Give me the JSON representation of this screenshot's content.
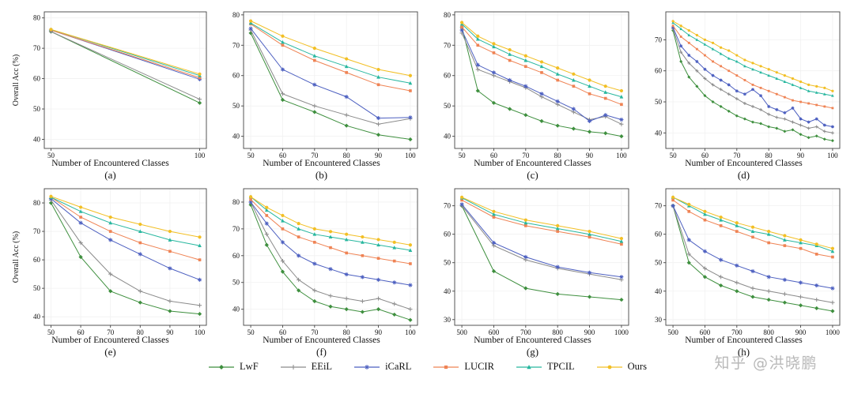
{
  "figure": {
    "xlabel": "Number of Encountered Classes",
    "ylabel": "Overall Acc (%)"
  },
  "watermark": {
    "text": "知乎 @洪晓鹏"
  },
  "legend": {
    "position": "bottom-center",
    "series": [
      {
        "name": "LwF",
        "label": "LwF",
        "color": "#3e8f3e",
        "marker": "diamond"
      },
      {
        "name": "EEiL",
        "label": "EEiL",
        "color": "#8a8a8a",
        "marker": "plus"
      },
      {
        "name": "iCaRL",
        "label": "iCaRL",
        "color": "#4c5fc0",
        "marker": "asterisk"
      },
      {
        "name": "LUCIR",
        "label": "LUCIR",
        "color": "#ef8354",
        "marker": "square"
      },
      {
        "name": "TPCIL",
        "label": "TPCIL",
        "color": "#28b79f",
        "marker": "triangle"
      },
      {
        "name": "Ours",
        "label": "Ours",
        "color": "#f2bf24",
        "marker": "circle"
      }
    ]
  },
  "chart_data": [
    {
      "type": "line",
      "label": "(a)",
      "xlabel": "Number of Encountered Classes",
      "ylabel": "Overall Acc (%)",
      "x": [
        50,
        100
      ],
      "xticks": [
        50,
        100
      ],
      "yticks": [
        40,
        50,
        60,
        70,
        80
      ],
      "ylim": [
        37,
        82
      ],
      "series": [
        {
          "name": "LwF",
          "values": [
            75.5,
            52
          ]
        },
        {
          "name": "EEiL",
          "values": [
            75.5,
            53.2
          ]
        },
        {
          "name": "iCaRL",
          "values": [
            76,
            59.8
          ]
        },
        {
          "name": "LUCIR",
          "values": [
            76,
            60.3
          ]
        },
        {
          "name": "TPCIL",
          "values": [
            76.2,
            61
          ]
        },
        {
          "name": "Ours",
          "values": [
            76.2,
            61.5
          ]
        }
      ]
    },
    {
      "type": "line",
      "label": "(b)",
      "xlabel": "Number of Encountered Classes",
      "ylabel": "",
      "x": [
        50,
        60,
        70,
        80,
        90,
        100
      ],
      "xticks": [
        50,
        60,
        70,
        80,
        90,
        100
      ],
      "yticks": [
        40,
        50,
        60,
        70,
        80
      ],
      "ylim": [
        36,
        81
      ],
      "series": [
        {
          "name": "LwF",
          "values": [
            74,
            52,
            48,
            43.5,
            40.5,
            39
          ]
        },
        {
          "name": "EEiL",
          "values": [
            75,
            54,
            50,
            47,
            44,
            45.8
          ]
        },
        {
          "name": "iCaRL",
          "values": [
            75.5,
            62,
            57,
            53,
            46,
            46.2
          ]
        },
        {
          "name": "LUCIR",
          "values": [
            77,
            70,
            65,
            61,
            57,
            55
          ]
        },
        {
          "name": "TPCIL",
          "values": [
            77.3,
            71,
            66.5,
            63,
            59.5,
            57.5
          ]
        },
        {
          "name": "Ours",
          "values": [
            78,
            73,
            69,
            65.5,
            62,
            60
          ]
        }
      ]
    },
    {
      "type": "line",
      "label": "(c)",
      "xlabel": "Number of Encountered Classes",
      "ylabel": "",
      "x": [
        50,
        55,
        60,
        65,
        70,
        75,
        80,
        85,
        90,
        95,
        100
      ],
      "xticks": [
        50,
        60,
        70,
        80,
        90,
        100
      ],
      "yticks": [
        40,
        50,
        60,
        70,
        80
      ],
      "ylim": [
        36,
        81
      ],
      "series": [
        {
          "name": "LwF",
          "values": [
            76,
            55,
            51,
            49,
            47,
            45,
            43.5,
            42.5,
            41.5,
            41,
            40
          ]
        },
        {
          "name": "EEiL",
          "values": [
            74,
            62,
            60,
            58,
            56,
            53,
            50.5,
            48,
            45.5,
            46.5,
            44
          ]
        },
        {
          "name": "iCaRL",
          "values": [
            75,
            63.5,
            61,
            58.5,
            56.5,
            54,
            51.5,
            49,
            45,
            47,
            45.5
          ]
        },
        {
          "name": "LUCIR",
          "values": [
            76,
            70,
            67.5,
            65,
            63,
            61,
            58.5,
            56.5,
            54,
            52.5,
            50.5
          ]
        },
        {
          "name": "TPCIL",
          "values": [
            77,
            72,
            69.5,
            67,
            65,
            63,
            60.5,
            58.5,
            56.5,
            54.5,
            53
          ]
        },
        {
          "name": "Ours",
          "values": [
            77.5,
            73,
            70.5,
            68.5,
            66.5,
            64.5,
            62.5,
            60.5,
            58.5,
            56.5,
            55
          ]
        }
      ]
    },
    {
      "type": "line",
      "label": "(d)",
      "xlabel": "Number of Encountered Classes",
      "ylabel": "",
      "x": [
        50,
        52.5,
        55,
        57.5,
        60,
        62.5,
        65,
        67.5,
        70,
        72.5,
        75,
        77.5,
        80,
        82.5,
        85,
        87.5,
        90,
        92.5,
        95,
        97.5,
        100
      ],
      "xticks": [
        50,
        60,
        70,
        80,
        90,
        100
      ],
      "yticks": [
        40,
        50,
        60,
        70
      ],
      "ylim": [
        35,
        79
      ],
      "series": [
        {
          "name": "LwF",
          "values": [
            73,
            63,
            58,
            55,
            52,
            50,
            48.5,
            47,
            45.5,
            44.5,
            43.5,
            43,
            42,
            41.5,
            40.5,
            41,
            39.5,
            38.5,
            39,
            38,
            37.5
          ]
        },
        {
          "name": "EEiL",
          "values": [
            73.5,
            66,
            62.5,
            60,
            57.5,
            55.5,
            54,
            52.5,
            51,
            49.5,
            48.5,
            47.5,
            46,
            45,
            44.5,
            43.5,
            42.5,
            41.5,
            42,
            40.5,
            40
          ]
        },
        {
          "name": "iCaRL",
          "values": [
            74,
            68,
            65,
            63,
            60.5,
            58.5,
            57,
            55.5,
            53.5,
            52.5,
            54,
            52,
            48.5,
            47.5,
            46.5,
            48,
            44.5,
            43.5,
            44.5,
            42.5,
            42
          ]
        },
        {
          "name": "LUCIR",
          "values": [
            74.5,
            71,
            69,
            67,
            65,
            63,
            61.5,
            60,
            58.5,
            57,
            55.5,
            54.5,
            53.5,
            52.5,
            51.5,
            50.5,
            50,
            49.5,
            49,
            48.5,
            48
          ]
        },
        {
          "name": "TPCIL",
          "values": [
            75.5,
            73.5,
            71.5,
            70,
            68.5,
            67,
            65.5,
            64,
            63,
            61.5,
            60.5,
            59.5,
            58.5,
            57.5,
            56.5,
            55.5,
            54.5,
            53.5,
            53,
            52.5,
            52
          ]
        },
        {
          "name": "Ours",
          "values": [
            76,
            74.5,
            73,
            71.5,
            70,
            69,
            67.5,
            66.5,
            65,
            63.5,
            62.5,
            61.5,
            60.5,
            59.5,
            58.5,
            57.5,
            56.5,
            55.5,
            55,
            54.5,
            53.5
          ]
        }
      ]
    },
    {
      "type": "line",
      "label": "(e)",
      "xlabel": "Number of Encountered Classes",
      "ylabel": "Overall Acc (%)",
      "x": [
        50,
        60,
        70,
        80,
        90,
        100
      ],
      "xticks": [
        50,
        60,
        70,
        80,
        90,
        100
      ],
      "yticks": [
        40,
        50,
        60,
        70,
        80
      ],
      "ylim": [
        37,
        85
      ],
      "series": [
        {
          "name": "LwF",
          "values": [
            80,
            61,
            49,
            45,
            42,
            41
          ]
        },
        {
          "name": "EEiL",
          "values": [
            81,
            66,
            55,
            49,
            45.5,
            44
          ]
        },
        {
          "name": "iCaRL",
          "values": [
            81.5,
            73,
            67,
            62,
            57,
            53
          ]
        },
        {
          "name": "LUCIR",
          "values": [
            82,
            75,
            70,
            66,
            63,
            60
          ]
        },
        {
          "name": "TPCIL",
          "values": [
            82,
            77,
            73,
            70,
            67,
            65
          ]
        },
        {
          "name": "Ours",
          "values": [
            82.3,
            78.5,
            75,
            72.5,
            70,
            68
          ]
        }
      ]
    },
    {
      "type": "line",
      "label": "(f)",
      "xlabel": "Number of Encountered Classes",
      "ylabel": "",
      "x": [
        50,
        55,
        60,
        65,
        70,
        75,
        80,
        85,
        90,
        95,
        100
      ],
      "xticks": [
        50,
        60,
        70,
        80,
        90,
        100
      ],
      "yticks": [
        40,
        50,
        60,
        70,
        80
      ],
      "ylim": [
        34,
        85
      ],
      "series": [
        {
          "name": "LwF",
          "values": [
            79,
            64,
            54,
            47,
            43,
            41,
            40,
            39,
            40,
            38,
            36
          ]
        },
        {
          "name": "EEiL",
          "values": [
            80,
            68,
            58,
            51,
            47,
            45,
            44,
            43,
            44,
            42,
            40
          ]
        },
        {
          "name": "iCaRL",
          "values": [
            80,
            72,
            65,
            60,
            57,
            55,
            53,
            52,
            51,
            50,
            49
          ]
        },
        {
          "name": "LUCIR",
          "values": [
            81,
            75,
            70,
            67,
            65,
            63,
            61,
            60,
            59,
            58,
            57
          ]
        },
        {
          "name": "TPCIL",
          "values": [
            82,
            77,
            73,
            70,
            68,
            67,
            66,
            65,
            64,
            63,
            62
          ]
        },
        {
          "name": "Ours",
          "values": [
            82,
            78,
            75,
            72,
            70,
            69,
            68,
            67,
            66,
            65,
            64
          ]
        }
      ]
    },
    {
      "type": "line",
      "label": "(g)",
      "xlabel": "Number of Encountered Classes",
      "ylabel": "",
      "x": [
        500,
        600,
        700,
        800,
        900,
        1000
      ],
      "xticks": [
        500,
        600,
        700,
        800,
        900,
        1000
      ],
      "yticks": [
        30,
        40,
        50,
        60,
        70
      ],
      "ylim": [
        28,
        76
      ],
      "series": [
        {
          "name": "LwF",
          "values": [
            70,
            47,
            41,
            39,
            38,
            37
          ]
        },
        {
          "name": "EEiL",
          "values": [
            70,
            56,
            51,
            48,
            46,
            44
          ]
        },
        {
          "name": "iCaRL",
          "values": [
            70.5,
            57,
            52,
            48.5,
            46.5,
            45
          ]
        },
        {
          "name": "LUCIR",
          "values": [
            72,
            66,
            63,
            61,
            59,
            56.5
          ]
        },
        {
          "name": "TPCIL",
          "values": [
            72.8,
            67,
            64,
            62,
            60,
            57.5
          ]
        },
        {
          "name": "Ours",
          "values": [
            73,
            68,
            65,
            63,
            61,
            58.5
          ]
        }
      ]
    },
    {
      "type": "line",
      "label": "(h)",
      "xlabel": "Number of Encountered Classes",
      "ylabel": "",
      "x": [
        500,
        550,
        600,
        650,
        700,
        750,
        800,
        850,
        900,
        950,
        1000
      ],
      "xticks": [
        500,
        600,
        700,
        800,
        900,
        1000
      ],
      "yticks": [
        30,
        40,
        50,
        60,
        70
      ],
      "ylim": [
        28,
        76
      ],
      "series": [
        {
          "name": "LwF",
          "values": [
            70,
            50,
            45,
            42,
            40,
            38,
            37,
            36,
            35,
            34,
            33
          ]
        },
        {
          "name": "EEiL",
          "values": [
            70,
            53,
            48,
            45,
            43,
            41,
            40,
            39,
            38,
            37,
            36
          ]
        },
        {
          "name": "iCaRL",
          "values": [
            70,
            58,
            54,
            51,
            49,
            47,
            45,
            44,
            43,
            42,
            41
          ]
        },
        {
          "name": "LUCIR",
          "values": [
            72,
            68,
            65,
            63,
            61,
            59,
            57,
            56,
            55,
            53,
            52
          ]
        },
        {
          "name": "TPCIL",
          "values": [
            73,
            70,
            67,
            65,
            63,
            61,
            60,
            58,
            57,
            56,
            54
          ]
        },
        {
          "name": "Ours",
          "values": [
            73,
            70.5,
            68,
            66,
            64,
            62.5,
            61,
            59.5,
            58,
            56.5,
            55
          ]
        }
      ]
    }
  ]
}
